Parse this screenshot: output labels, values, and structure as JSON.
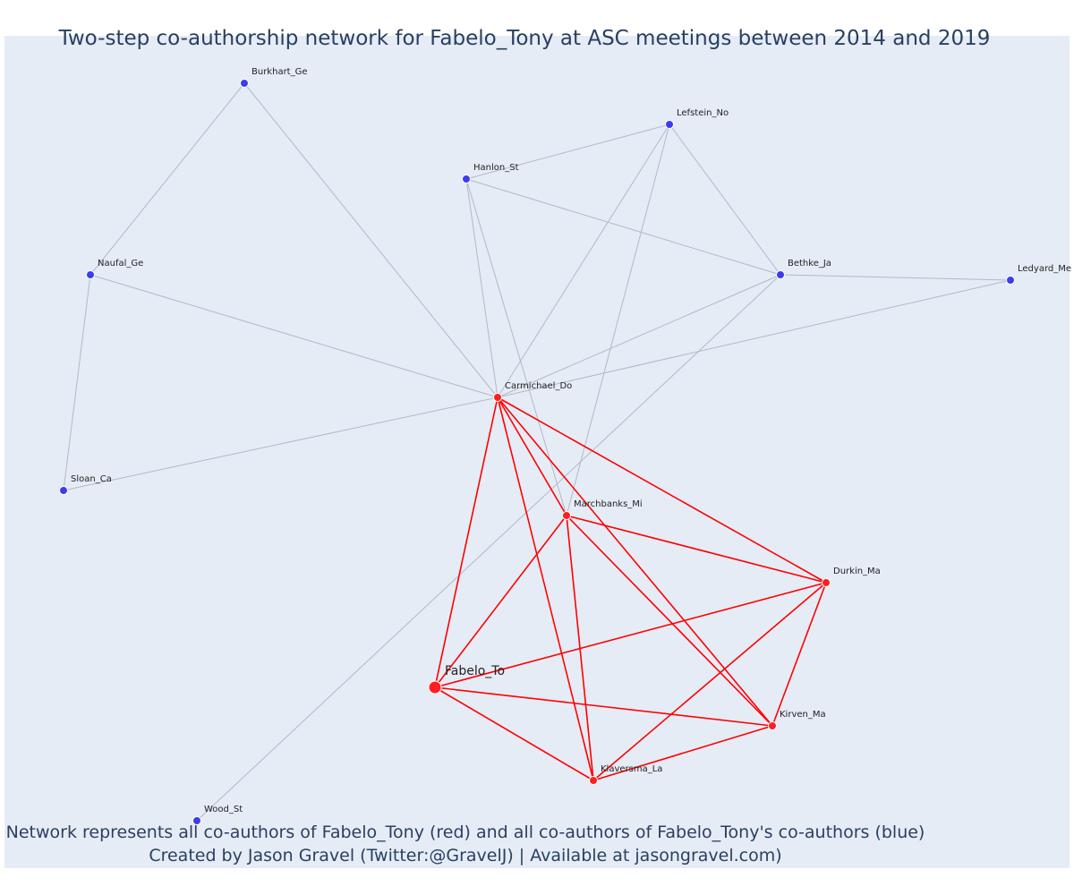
{
  "title": "Two-step co-authorship network for Fabelo_Tony at ASC meetings between 2014 and 2019",
  "caption": {
    "line1": "Network represents all co-authors of Fabelo_Tony (red) and all co-authors of Fabelo_Tony's co-authors (blue)",
    "line2": "Created by Jason Gravel (Twitter:@GravelJ) | Available at jasongravel.com)"
  },
  "colors": {
    "plot_bg": "#e5ecf6",
    "direct_node": "#ff1f1f",
    "indirect_node": "#3b3ded",
    "direct_edge": "#ff0000",
    "indirect_edge": "#b3b8c8"
  },
  "nodes": [
    {
      "id": "Burkhart_Ge",
      "label": "Burkhart_Ge",
      "group": "coauthor-of-coauthor"
    },
    {
      "id": "Lefstein_No",
      "label": "Lefstein_No",
      "group": "coauthor-of-coauthor"
    },
    {
      "id": "Hanlon_St",
      "label": "Hanlon_St",
      "group": "coauthor-of-coauthor"
    },
    {
      "id": "Naufal_Ge",
      "label": "Naufal_Ge",
      "group": "coauthor-of-coauthor"
    },
    {
      "id": "Bethke_Ja",
      "label": "Bethke_Ja",
      "group": "coauthor-of-coauthor"
    },
    {
      "id": "Ledyard_Me",
      "label": "Ledyard_Me",
      "group": "coauthor-of-coauthor"
    },
    {
      "id": "Sloan_Ca",
      "label": "Sloan_Ca",
      "group": "coauthor-of-coauthor"
    },
    {
      "id": "Wood_St",
      "label": "Wood_St",
      "group": "coauthor-of-coauthor"
    },
    {
      "id": "Carmichael_Do",
      "label": "Carmichael_Do",
      "group": "coauthor"
    },
    {
      "id": "Marchbanks_Mi",
      "label": "Marchbanks_Mi",
      "group": "coauthor"
    },
    {
      "id": "Durkin_Ma",
      "label": "Durkin_Ma",
      "group": "coauthor"
    },
    {
      "id": "Fabelo_To",
      "label": "Fabelo_To",
      "group": "ego"
    },
    {
      "id": "Kirven_Ma",
      "label": "Kirven_Ma",
      "group": "coauthor"
    },
    {
      "id": "Klaversma_La",
      "label": "Klaversma_La",
      "group": "coauthor"
    }
  ],
  "edges": [
    [
      "Burkhart_Ge",
      "Naufal_Ge",
      "indirect"
    ],
    [
      "Burkhart_Ge",
      "Carmichael_Do",
      "indirect"
    ],
    [
      "Naufal_Ge",
      "Sloan_Ca",
      "indirect"
    ],
    [
      "Naufal_Ge",
      "Carmichael_Do",
      "indirect"
    ],
    [
      "Sloan_Ca",
      "Carmichael_Do",
      "indirect"
    ],
    [
      "Hanlon_St",
      "Lefstein_No",
      "indirect"
    ],
    [
      "Hanlon_St",
      "Bethke_Ja",
      "indirect"
    ],
    [
      "Hanlon_St",
      "Carmichael_Do",
      "indirect"
    ],
    [
      "Hanlon_St",
      "Marchbanks_Mi",
      "indirect"
    ],
    [
      "Lefstein_No",
      "Bethke_Ja",
      "indirect"
    ],
    [
      "Lefstein_No",
      "Carmichael_Do",
      "indirect"
    ],
    [
      "Lefstein_No",
      "Marchbanks_Mi",
      "indirect"
    ],
    [
      "Bethke_Ja",
      "Ledyard_Me",
      "indirect"
    ],
    [
      "Bethke_Ja",
      "Carmichael_Do",
      "indirect"
    ],
    [
      "Ledyard_Me",
      "Carmichael_Do",
      "indirect"
    ],
    [
      "Bethke_Ja",
      "Wood_St",
      "indirect"
    ],
    [
      "Carmichael_Do",
      "Marchbanks_Mi",
      "direct"
    ],
    [
      "Carmichael_Do",
      "Durkin_Ma",
      "direct"
    ],
    [
      "Carmichael_Do",
      "Fabelo_To",
      "direct"
    ],
    [
      "Carmichael_Do",
      "Kirven_Ma",
      "direct"
    ],
    [
      "Carmichael_Do",
      "Klaversma_La",
      "direct"
    ],
    [
      "Marchbanks_Mi",
      "Durkin_Ma",
      "direct"
    ],
    [
      "Marchbanks_Mi",
      "Fabelo_To",
      "direct"
    ],
    [
      "Marchbanks_Mi",
      "Kirven_Ma",
      "direct"
    ],
    [
      "Marchbanks_Mi",
      "Klaversma_La",
      "direct"
    ],
    [
      "Fabelo_To",
      "Durkin_Ma",
      "direct"
    ],
    [
      "Fabelo_To",
      "Kirven_Ma",
      "direct"
    ],
    [
      "Fabelo_To",
      "Klaversma_La",
      "direct"
    ],
    [
      "Durkin_Ma",
      "Kirven_Ma",
      "direct"
    ],
    [
      "Durkin_Ma",
      "Klaversma_La",
      "direct"
    ],
    [
      "Kirven_Ma",
      "Klaversma_La",
      "direct"
    ]
  ]
}
